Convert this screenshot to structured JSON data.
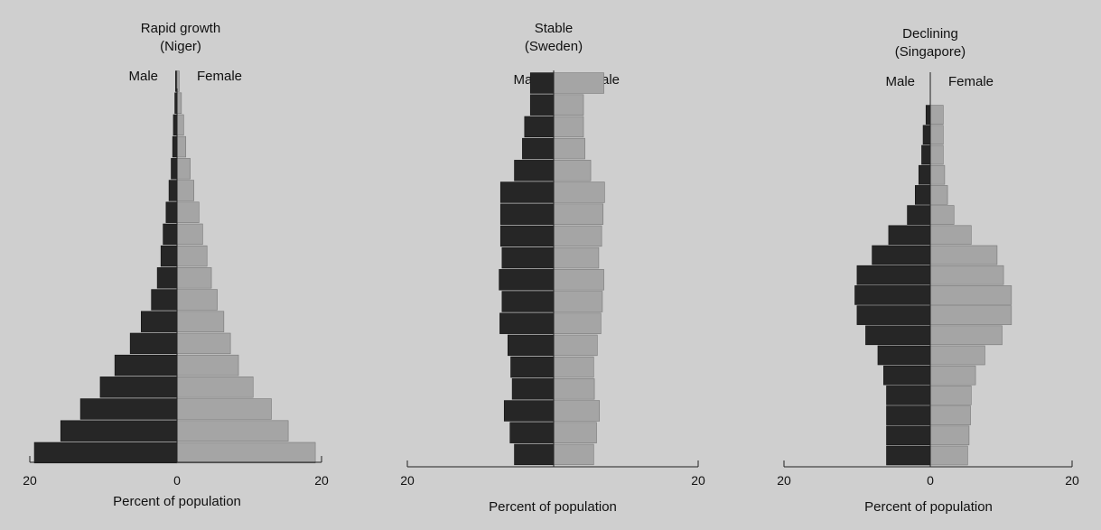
{
  "chart_data": [
    {
      "type": "bar",
      "orientation": "horizontal-pyramid",
      "title_lines": [
        "Rapid growth",
        "(Niger)"
      ],
      "male_label": "Male",
      "female_label": "Female",
      "xlabel": "Percent of population",
      "xlim": [
        -20,
        20
      ],
      "tick_labels": [
        "20",
        "0",
        "20"
      ],
      "grid": false,
      "legend": "none",
      "colors": {
        "male": "#262626",
        "female": "#a5a5a5"
      },
      "series": [
        {
          "name": "Male",
          "values": [
            19.5,
            15.9,
            13.2,
            10.5,
            8.5,
            6.4,
            4.9,
            3.5,
            2.7,
            2.2,
            1.9,
            1.5,
            1.1,
            0.8,
            0.6,
            0.5,
            0.3,
            0.2
          ]
        },
        {
          "name": "Female",
          "values": [
            18.9,
            15.2,
            12.9,
            10.4,
            8.4,
            7.3,
            6.4,
            5.5,
            4.7,
            4.1,
            3.5,
            3.0,
            2.3,
            1.8,
            1.2,
            0.9,
            0.6,
            0.3
          ]
        }
      ]
    },
    {
      "type": "bar",
      "orientation": "horizontal-pyramid",
      "title_lines": [
        "Stable",
        "(Sweden)"
      ],
      "male_label": "Male",
      "female_label": "Female",
      "xlabel": "Percent of population",
      "xlim": [
        -20,
        20
      ],
      "tick_labels": [
        "20",
        "",
        "20"
      ],
      "grid": false,
      "legend": "none",
      "colors": {
        "male": "#262626",
        "female": "#a5a5a5"
      },
      "series": [
        {
          "name": "Male",
          "values": [
            5.4,
            6.0,
            6.8,
            5.7,
            5.9,
            6.3,
            7.4,
            7.1,
            7.5,
            7.1,
            7.3,
            7.3,
            7.3,
            5.4,
            4.3,
            4.0,
            3.2,
            3.2
          ]
        },
        {
          "name": "Female",
          "values": [
            5.5,
            5.9,
            6.3,
            5.6,
            5.5,
            6.0,
            6.5,
            6.7,
            6.9,
            6.2,
            6.6,
            6.8,
            7.0,
            5.1,
            4.3,
            4.1,
            4.1,
            6.9
          ]
        }
      ]
    },
    {
      "type": "bar",
      "orientation": "horizontal-pyramid",
      "title_lines": [
        "Declining",
        "(Singapore)"
      ],
      "male_label": "Male",
      "female_label": "Female",
      "xlabel": "Percent of population",
      "xlim": [
        -20,
        20
      ],
      "tick_labels": [
        "20",
        "0",
        "20"
      ],
      "grid": false,
      "legend": "none",
      "colors": {
        "male": "#262626",
        "female": "#a5a5a5"
      },
      "series": [
        {
          "name": "Male",
          "values": [
            6.1,
            6.1,
            6.1,
            6.1,
            6.5,
            7.3,
            9.0,
            10.2,
            10.5,
            10.2,
            8.1,
            5.8,
            3.2,
            2.1,
            1.6,
            1.2,
            1.0,
            0.6
          ]
        },
        {
          "name": "Female",
          "values": [
            5.2,
            5.4,
            5.6,
            5.7,
            6.3,
            7.6,
            10.0,
            11.3,
            11.3,
            10.2,
            9.3,
            5.7,
            3.3,
            2.4,
            2.0,
            1.8,
            1.8,
            1.8
          ]
        }
      ]
    }
  ]
}
